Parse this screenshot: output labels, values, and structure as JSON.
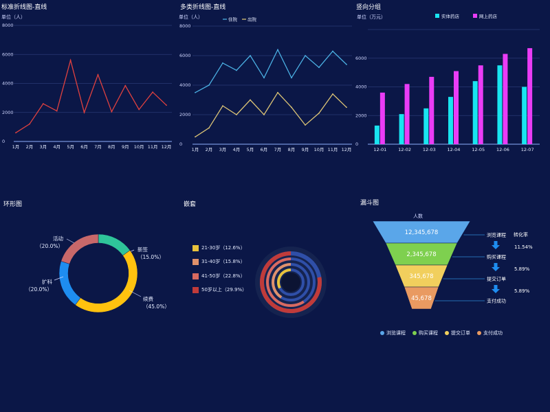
{
  "chart_data": [
    {
      "type": "line",
      "title": "标准折线图-直线",
      "ylabel": "单位（人）",
      "categories": [
        "1月",
        "2月",
        "3月",
        "4月",
        "5月",
        "6月",
        "7月",
        "8月",
        "9月",
        "10月",
        "11月",
        "12月"
      ],
      "series": [
        {
          "values": [
            600,
            1200,
            2600,
            2100,
            5600,
            2000,
            4600,
            2050,
            3850,
            2200,
            3400,
            2500
          ],
          "color": "#e0413f"
        }
      ],
      "ylim": [
        0,
        8000
      ],
      "yticks": [
        "0",
        "2000",
        "4000",
        "6000",
        "8000"
      ],
      "grid": true
    },
    {
      "type": "line",
      "title": "多类折线图-直线",
      "ylabel": "单位（人）",
      "categories": [
        "1月",
        "2月",
        "3月",
        "4月",
        "5月",
        "6月",
        "7月",
        "8月",
        "9月",
        "10月",
        "11月",
        "12月"
      ],
      "series": [
        {
          "name": "住院",
          "values": [
            3500,
            4000,
            5500,
            5000,
            6000,
            4500,
            6400,
            4500,
            6000,
            5200,
            6300,
            5400
          ],
          "color": "#4bb0e3"
        },
        {
          "name": "出院",
          "values": [
            500,
            1100,
            2600,
            2000,
            3000,
            2000,
            3500,
            2500,
            1300,
            2100,
            3400,
            2500
          ],
          "color": "#dcc476"
        }
      ],
      "ylim": [
        0,
        8000
      ],
      "yticks": [
        "0",
        "2000",
        "4000",
        "6000",
        "8000"
      ],
      "grid": true,
      "legend": "top-center"
    },
    {
      "type": "bar",
      "title": "竖向分组",
      "ylabel": "单位（万元）",
      "categories": [
        "12-01",
        "12-02",
        "12-03",
        "12-04",
        "12-05",
        "12-06",
        "12-07"
      ],
      "series": [
        {
          "name": "实体药店",
          "values": [
            1300,
            2100,
            2500,
            3300,
            4400,
            5500,
            4000
          ],
          "color": "#19e4f0"
        },
        {
          "name": "网上药店",
          "values": [
            3600,
            4200,
            4700,
            5100,
            5500,
            6300,
            6700
          ],
          "color": "#ea3cf6"
        }
      ],
      "ylim": [
        0,
        8000
      ],
      "yticks": [
        "0",
        "2000",
        "4000",
        "6000"
      ],
      "grid": true,
      "legend": "top-center"
    },
    {
      "type": "pie",
      "title": "环形图",
      "slices": [
        {
          "label": "新签",
          "pct": 15.0,
          "text": "（15.0%）",
          "color": "#2fc49a"
        },
        {
          "label": "续费",
          "pct": 45.0,
          "text": "（45.0%）",
          "color": "#ffc20f"
        },
        {
          "label": "扩科",
          "pct": 20.0,
          "text": "（20.0%）",
          "color": "#1e8df0"
        },
        {
          "label": "活动",
          "pct": 20.0,
          "text": "（20.0%）",
          "color": "#c8686a"
        }
      ]
    },
    {
      "type": "pie",
      "title": "嵌套",
      "rings": [
        {
          "label": "21-30岁（12.6%）",
          "pct": 12.6,
          "color": "#e8c23c"
        },
        {
          "label": "31-40岁（15.8%）",
          "pct": 15.8,
          "color": "#e0916b"
        },
        {
          "label": "41-50岁（22.8%）",
          "pct": 22.8,
          "color": "#d96a60"
        },
        {
          "label": "50岁以上（29.9%）",
          "pct": 29.9,
          "color": "#c03b3a"
        }
      ]
    },
    {
      "type": "bar",
      "title": "漏斗图",
      "ylabel": "人数",
      "stages": [
        {
          "name": "浏览课程",
          "value": "12,345,678",
          "color": "#5aa6e9"
        },
        {
          "name": "购买课程",
          "value": "2,345,678",
          "color": "#7ed04f"
        },
        {
          "name": "提交订单",
          "value": "345,678",
          "color": "#f1cf5d"
        },
        {
          "name": "支付成功",
          "value": "45,678",
          "color": "#e99a61"
        }
      ],
      "rate_header": "转化率",
      "rates": [
        "11.54%",
        "5.89%",
        "5.89%"
      ],
      "legend": "bottom"
    }
  ]
}
